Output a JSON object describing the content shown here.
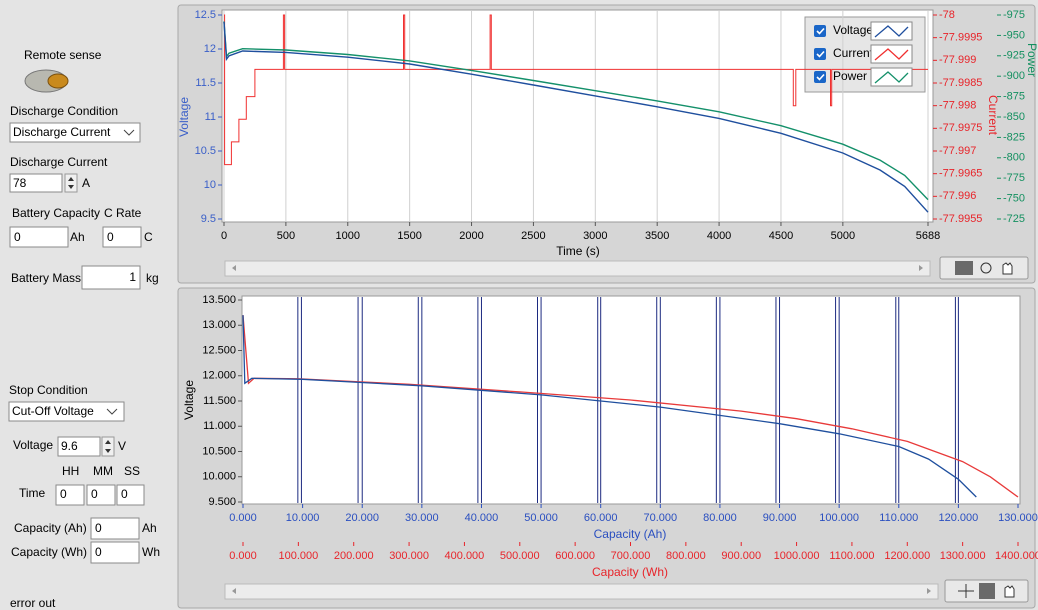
{
  "panel": {
    "remote_sense": "Remote sense",
    "discharge_condition": {
      "label": "Discharge Condition",
      "value": "Discharge Current"
    },
    "discharge_current": {
      "label": "Discharge Current",
      "value": 78,
      "unit": "A"
    },
    "battery_capacity": {
      "label": "Battery Capacity",
      "value": 0,
      "unit": "Ah"
    },
    "c_rate": {
      "label": "C Rate",
      "value": 0,
      "unit": "C"
    },
    "battery_mass": {
      "label": "Battery Mass",
      "value": 1,
      "unit": "kg"
    },
    "stop_condition": {
      "label": "Stop Condition",
      "value": "Cut-Off Voltage"
    },
    "voltage": {
      "label": "Voltage",
      "value": 9.6,
      "unit": "V"
    },
    "time": {
      "label": "Time",
      "fields": [
        {
          "label": "HH",
          "value": 0
        },
        {
          "label": "MM",
          "value": 0
        },
        {
          "label": "SS",
          "value": 0
        }
      ]
    },
    "capacity_ah": {
      "label": "Capacity (Ah)",
      "value": 0,
      "unit": "Ah"
    },
    "capacity_wh": {
      "label": "Capacity (Wh)",
      "value": 0,
      "unit": "Wh"
    },
    "error_out": "error out"
  },
  "chart1": {
    "type": "line",
    "x_label": "Time (s)",
    "xlim": [
      0,
      5688
    ],
    "xticks": [
      0,
      500,
      1000,
      1500,
      2000,
      2500,
      3000,
      3500,
      4000,
      4500,
      5000,
      5688
    ],
    "grid": "x",
    "y_label": "Voltage",
    "y_color": "#3a5fc8",
    "ylim": [
      9.5,
      12.5
    ],
    "yticks": [
      9.5,
      10,
      10.5,
      11,
      11.5,
      12,
      12.5
    ],
    "y2_label": "Current",
    "y2_color": "#e8242a",
    "y2lim": [
      -77.9955,
      -78
    ],
    "y2ticks": [
      -78,
      -77.9995,
      -77.999,
      -77.9985,
      -77.998,
      -77.9975,
      -77.997,
      -77.9965,
      -77.996,
      -77.9955
    ],
    "y3_label": "Power",
    "y3_color": "#149060",
    "y3lim": [
      -725,
      -975
    ],
    "y3ticks": [
      -975,
      -950,
      -925,
      -900,
      -875,
      -850,
      -825,
      -800,
      -775,
      -750,
      -725
    ],
    "series": [
      {
        "name": "Voltage",
        "color": "#1f4f9e",
        "axis": "y",
        "x": [
          0,
          20,
          40,
          150,
          500,
          1000,
          1500,
          2000,
          2500,
          3000,
          3500,
          4000,
          4500,
          5000,
          5300,
          5500,
          5688
        ],
        "values": [
          12.4,
          11.85,
          11.9,
          11.97,
          11.95,
          11.88,
          11.78,
          11.63,
          11.47,
          11.31,
          11.15,
          10.98,
          10.76,
          10.47,
          10.22,
          9.98,
          9.6
        ]
      },
      {
        "name": "Current",
        "color": "#f03030",
        "axis": "y2",
        "x": [
          0,
          5,
          5,
          60,
          60,
          120,
          120,
          180,
          180,
          250,
          250,
          480,
          480,
          490,
          490,
          1450,
          1450,
          1460,
          1460,
          2150,
          2150,
          2160,
          2160,
          4600,
          4600,
          4620,
          4620,
          4900,
          4900,
          4910,
          4910,
          5688
        ],
        "values": [
          -78,
          -78,
          -77.9967,
          -77.9967,
          -77.9972,
          -77.9972,
          -77.9977,
          -77.9977,
          -77.9982,
          -77.9982,
          -77.9988,
          -77.9988,
          -78,
          -78,
          -77.9988,
          -77.9988,
          -78,
          -78,
          -77.9988,
          -77.9988,
          -78,
          -78,
          -77.9988,
          -77.9988,
          -77.998,
          -77.998,
          -77.9988,
          -77.9988,
          -77.998,
          -77.998,
          -77.9988,
          -77.9988
        ]
      },
      {
        "name": "Power",
        "color": "#14906a",
        "axis": "y3",
        "x": [
          0,
          20,
          40,
          150,
          500,
          1000,
          1500,
          2000,
          2500,
          3000,
          3500,
          4000,
          4500,
          5000,
          5300,
          5500,
          5688
        ],
        "values": [
          -967.2,
          -924.3,
          -928.2,
          -933.7,
          -932.1,
          -926.6,
          -918.8,
          -907.1,
          -894.7,
          -882.2,
          -869.7,
          -856.4,
          -839.3,
          -816.7,
          -797.2,
          -778.4,
          -748.8
        ]
      }
    ]
  },
  "chart2": {
    "type": "line",
    "y_label": "Voltage",
    "ylim": [
      9.5,
      13.5
    ],
    "yticks": [
      {
        "value": 9.5,
        "label": "9.500"
      },
      {
        "value": 10,
        "label": "10.000"
      },
      {
        "value": 10.5,
        "label": "10.500"
      },
      {
        "value": 11,
        "label": "11.000"
      },
      {
        "value": 11.5,
        "label": "11.500"
      },
      {
        "value": 12,
        "label": "12.000"
      },
      {
        "value": 12.5,
        "label": "12.500"
      },
      {
        "value": 13,
        "label": "13.000"
      },
      {
        "value": 13.5,
        "label": "13.500"
      }
    ],
    "x_label": "Capacity (Ah)",
    "x_color": "#2a4fc0",
    "xlim": [
      0,
      130
    ],
    "xticks": [
      {
        "value": 0,
        "label": "0.000"
      },
      {
        "value": 10,
        "label": "10.000"
      },
      {
        "value": 20,
        "label": "20.000"
      },
      {
        "value": 30,
        "label": "30.000"
      },
      {
        "value": 40,
        "label": "40.000"
      },
      {
        "value": 50,
        "label": "50.000"
      },
      {
        "value": 60,
        "label": "60.000"
      },
      {
        "value": 70,
        "label": "70.000"
      },
      {
        "value": 80,
        "label": "80.000"
      },
      {
        "value": 90,
        "label": "90.000"
      },
      {
        "value": 100,
        "label": "100.000"
      },
      {
        "value": 110,
        "label": "110.000"
      },
      {
        "value": 120,
        "label": "120.000"
      },
      {
        "value": 130,
        "label": "130.000"
      }
    ],
    "x2_label": "Capacity (Wh)",
    "x2_color": "#e8242a",
    "x2lim": [
      0,
      1400
    ],
    "x2ticks": [
      {
        "value": 0,
        "label": "0.000"
      },
      {
        "value": 100,
        "label": "100.000"
      },
      {
        "value": 200,
        "label": "200.000"
      },
      {
        "value": 300,
        "label": "300.000"
      },
      {
        "value": 400,
        "label": "400.000"
      },
      {
        "value": 500,
        "label": "500.000"
      },
      {
        "value": 600,
        "label": "600.000"
      },
      {
        "value": 700,
        "label": "700.000"
      },
      {
        "value": 800,
        "label": "800.000"
      },
      {
        "value": 900,
        "label": "900.000"
      },
      {
        "value": 1000,
        "label": "1000.000"
      },
      {
        "value": 1100,
        "label": "1100.000"
      },
      {
        "value": 1200,
        "label": "1200.000"
      },
      {
        "value": 1300,
        "label": "1300.000"
      },
      {
        "value": 1400,
        "label": "1400.000"
      }
    ],
    "markers": [
      9.2,
      9.8,
      19.3,
      20,
      29.4,
      30,
      39.4,
      40,
      49.4,
      50,
      59.5,
      60,
      69.4,
      70,
      79.4,
      80,
      89.4,
      90,
      99.4,
      100,
      109.5,
      110,
      119.5,
      120
    ],
    "marker_color": "#1c2a80",
    "series": [
      {
        "name": "Capacity (Ah)",
        "color": "#1f4f9e",
        "axis": "x",
        "x": [
          0,
          0.3,
          1.5,
          10,
          30,
          50,
          70,
          90,
          100,
          110,
          115,
          120,
          123
        ],
        "values": [
          13.2,
          11.85,
          11.95,
          11.93,
          11.8,
          11.62,
          11.38,
          11.05,
          10.85,
          10.6,
          10.35,
          9.95,
          9.6
        ]
      },
      {
        "name": "Capacity (Wh)",
        "color": "#e83a3a",
        "axis": "x2",
        "x": [
          0,
          10,
          20,
          100,
          300,
          500,
          700,
          900,
          1000,
          1100,
          1200,
          1300,
          1350,
          1400
        ],
        "values": [
          13.2,
          11.85,
          11.95,
          11.94,
          11.83,
          11.68,
          11.52,
          11.3,
          11.15,
          10.95,
          10.7,
          10.3,
          10,
          9.6
        ]
      }
    ]
  }
}
